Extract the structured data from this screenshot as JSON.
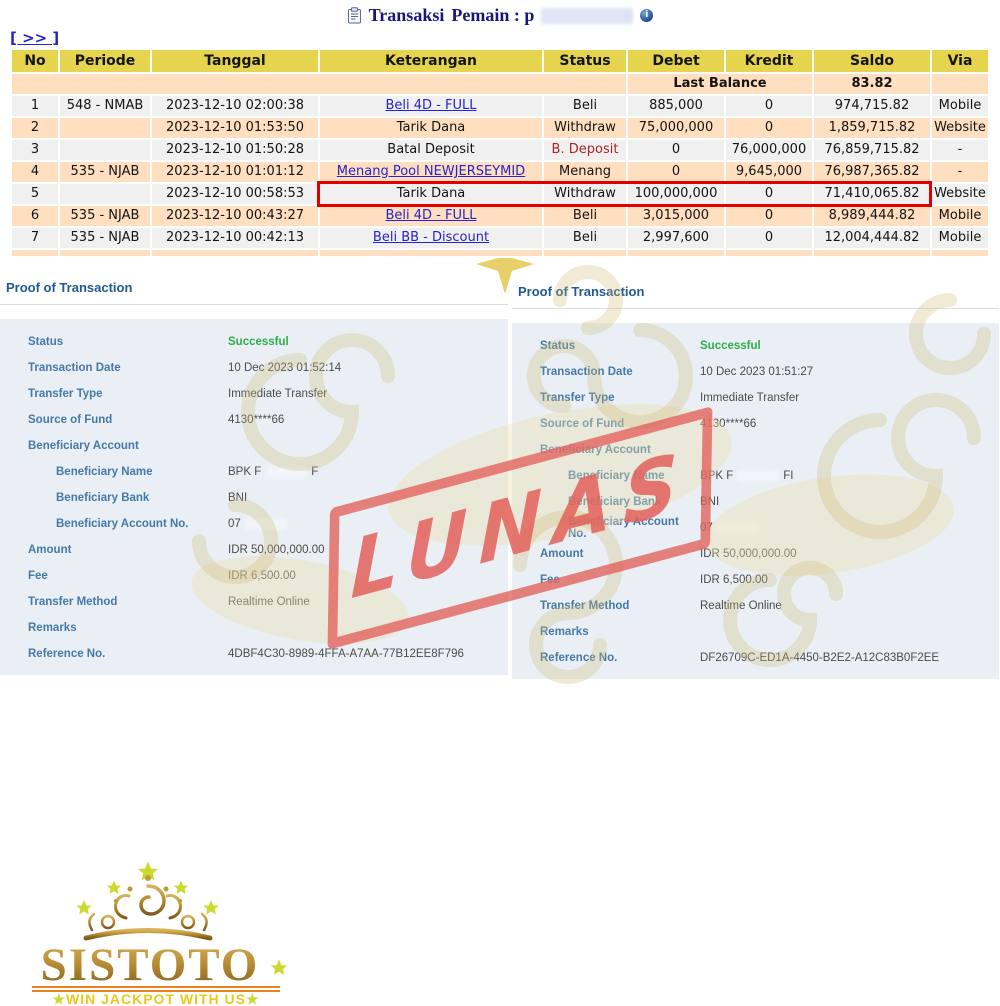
{
  "page": {
    "title": "Transaksi",
    "subtitle": "Pemain : p",
    "nav_link": "[ >> ]",
    "icons": {
      "info": "i"
    }
  },
  "table": {
    "columns": [
      "No",
      "Periode",
      "Tanggal",
      "Keterangan",
      "Status",
      "Debet",
      "Kredit",
      "Saldo",
      "Via"
    ],
    "last_balance_label": "Last Balance",
    "last_balance_value": "83.82",
    "rows": [
      {
        "no": "1",
        "periode": "548 - NMAB",
        "tanggal": "2023-12-10 02:00:38",
        "keterangan": "Beli 4D - FULL",
        "is_link": true,
        "status": "Beli",
        "debet": "885,000",
        "kredit": "0",
        "saldo": "974,715.82",
        "via": "Mobile"
      },
      {
        "no": "2",
        "periode": "",
        "tanggal": "2023-12-10 01:53:50",
        "keterangan": "Tarik Dana",
        "is_link": false,
        "status": "Withdraw",
        "debet": "75,000,000",
        "kredit": "0",
        "saldo": "1,859,715.82",
        "via": "Website"
      },
      {
        "no": "3",
        "periode": "",
        "tanggal": "2023-12-10 01:50:28",
        "keterangan": "Batal Deposit",
        "is_link": false,
        "status": "B. Deposit",
        "status_dark": true,
        "debet": "0",
        "kredit": "76,000,000",
        "saldo": "76,859,715.82",
        "via": "-"
      },
      {
        "no": "4",
        "periode": "535 - NJAB",
        "tanggal": "2023-12-10 01:01:12",
        "keterangan": "Menang Pool NEWJERSEYMID",
        "is_link": true,
        "status": "Menang",
        "debet": "0",
        "kredit": "9,645,000",
        "saldo": "76,987,365.82",
        "via": "-"
      },
      {
        "no": "5",
        "periode": "",
        "tanggal": "2023-12-10 00:58:53",
        "keterangan": "Tarik Dana",
        "is_link": false,
        "status": "Withdraw",
        "debet": "100,000,000",
        "kredit": "0",
        "saldo": "71,410,065.82",
        "via": "Website",
        "highlighted": true
      },
      {
        "no": "6",
        "periode": "535 - NJAB",
        "tanggal": "2023-12-10 00:43:27",
        "keterangan": "Beli 4D - FULL",
        "is_link": true,
        "status": "Beli",
        "debet": "3,015,000",
        "kredit": "0",
        "saldo": "8,989,444.82",
        "via": "Mobile"
      },
      {
        "no": "7",
        "periode": "535 - NJAB",
        "tanggal": "2023-12-10 00:42:13",
        "keterangan": "Beli BB - Discount",
        "is_link": true,
        "status": "Beli",
        "debet": "2,997,600",
        "kredit": "0",
        "saldo": "12,004,444.82",
        "via": "Mobile"
      }
    ]
  },
  "proofs": [
    {
      "title": "Proof of Transaction",
      "fields": [
        {
          "label": "Status",
          "value": "Successful",
          "success": true
        },
        {
          "label": "Transaction Date",
          "value": "10 Dec 2023 01:52:14"
        },
        {
          "label": "Transfer Type",
          "value": "Immediate Transfer"
        },
        {
          "label": "Source of Fund",
          "value": "4130****66"
        },
        {
          "label": "Beneficiary Account",
          "value": ""
        },
        {
          "label": "Beneficiary Name",
          "value": "BPK F",
          "suffix": "F",
          "redacted": true,
          "indent": true
        },
        {
          "label": "Beneficiary Bank",
          "value": "BNI",
          "indent": true
        },
        {
          "label": "Beneficiary Account No.",
          "value": "07",
          "redacted": true,
          "indent": true
        },
        {
          "label": "Amount",
          "value": "IDR 50,000,000.00"
        },
        {
          "label": "Fee",
          "value": "IDR 6,500.00"
        },
        {
          "label": "Transfer Method",
          "value": "Realtime Online"
        },
        {
          "label": "Remarks",
          "value": ""
        },
        {
          "label": "Reference No.",
          "value": "4DBF4C30-8989-4FFA-A7AA-77B12EE8F796"
        }
      ]
    },
    {
      "title": "Proof of Transaction",
      "fields": [
        {
          "label": "Status",
          "value": "Successful",
          "success": true
        },
        {
          "label": "Transaction Date",
          "value": "10 Dec 2023 01:51:27"
        },
        {
          "label": "Transfer Type",
          "value": "Immediate Transfer"
        },
        {
          "label": "Source of Fund",
          "value": "4130****66"
        },
        {
          "label": "Beneficiary Account",
          "value": ""
        },
        {
          "label": "Beneficiary Name",
          "value": "BPK F",
          "suffix": "FI",
          "redacted": true,
          "indent": true
        },
        {
          "label": "Beneficiary Bank",
          "value": "BNI",
          "indent": true
        },
        {
          "label": "Beneficiary Account No.",
          "value": "07",
          "redacted": true,
          "indent": true
        },
        {
          "label": "Amount",
          "value": "IDR 50,000,000.00"
        },
        {
          "label": "Fee",
          "value": "IDR 6,500.00"
        },
        {
          "label": "Transfer Method",
          "value": "Realtime Online"
        },
        {
          "label": "Remarks",
          "value": ""
        },
        {
          "label": "Reference No.",
          "value": "DF26709C-ED1A-4450-B2E2-A12C83B0F2EE"
        }
      ]
    }
  ],
  "stamp": {
    "text": "LUNAS"
  },
  "logo": {
    "brand": "SISTOTO",
    "tagline": "WIN JACKPOT WITH US",
    "star": "★"
  },
  "colors": {
    "header_yellow": "#e6d44e",
    "row_peach": "#ffdfc0",
    "row_gray": "#f0f0f0",
    "highlight_red": "#e10000",
    "status_red": "#e31e1e",
    "link_blue": "#2424cc",
    "value_blue": "#3434cf",
    "title_navy": "#16167d",
    "proof_label_blue": "#4679a8",
    "proof_title_blue": "#205a94",
    "success_green": "#2fae48",
    "stamp_red": "#e2605a",
    "logo_gold": "#b68a33",
    "star_green": "#ccd92f",
    "underline_orange": "#e8821e"
  }
}
